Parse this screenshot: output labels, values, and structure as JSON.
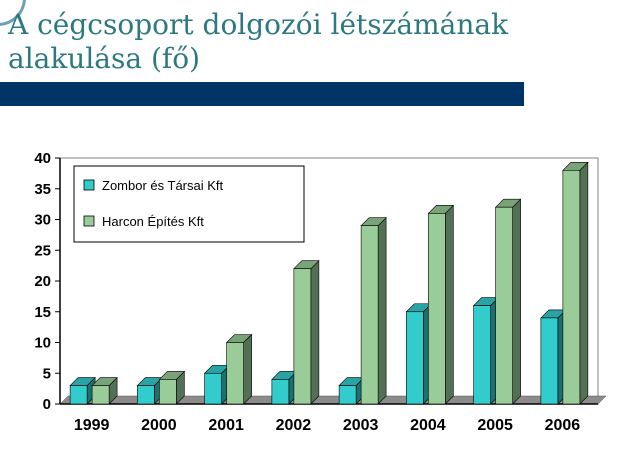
{
  "slide": {
    "title": "A cégcsoport dolgozói létszámának alakulása (fő)"
  },
  "colors": {
    "title": "#2c7a80",
    "bar_band": "#003366",
    "series1": "#33cccc",
    "series2": "#99cc99"
  },
  "chart_data": {
    "type": "bar",
    "title": "",
    "xlabel": "",
    "ylabel": "",
    "ylim": [
      0,
      40
    ],
    "yticks": [
      0,
      5,
      10,
      15,
      20,
      25,
      30,
      35,
      40
    ],
    "categories": [
      "1999",
      "2000",
      "2001",
      "2002",
      "2003",
      "2004",
      "2005",
      "2006"
    ],
    "series": [
      {
        "name": "Zombor és Társai Kft",
        "values": [
          3,
          3,
          5,
          4,
          3,
          15,
          16,
          14
        ]
      },
      {
        "name": "Harcon Építés Kft",
        "values": [
          3,
          4,
          10,
          22,
          29,
          31,
          32,
          38
        ]
      }
    ],
    "legend": "top-left",
    "grid": false
  }
}
